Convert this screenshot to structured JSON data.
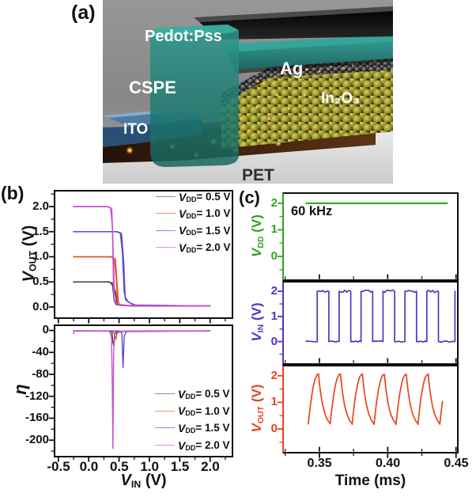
{
  "panel_a": {
    "tag": "(a)",
    "pedot": "Pedot:Pss",
    "cspe": "CSPE",
    "ag": "Ag",
    "in2o3": "In₂O₃",
    "ito": "ITO",
    "pet": "PET"
  },
  "panel_b": {
    "tag": "(b)",
    "ylabel_top": {
      "v": "V",
      "sub": "OUT",
      "unit": " (V)"
    },
    "ylabel_bottom": "η",
    "xlabel": {
      "v": "V",
      "sub": "IN",
      "unit": " (V)"
    }
  },
  "panel_c": {
    "tag": "(c)",
    "annotation": "60 kHz",
    "xlabel": "Time (ms)",
    "ylabel_vdd": {
      "v": "V",
      "sub": "DD",
      "unit": " (V)"
    },
    "ylabel_vin": {
      "v": "V",
      "sub": "IN",
      "unit": " (V)"
    },
    "ylabel_vout": {
      "v": "V",
      "sub": "OUT",
      "unit": " (V)"
    }
  },
  "chart_data": [
    {
      "id": "b-top",
      "type": "line",
      "xlabel": "V_IN (V)",
      "ylabel": "V_OUT (V)",
      "xlim": [
        -0.55,
        2.35
      ],
      "ylim": [
        -0.2,
        2.3
      ],
      "xticks": [
        -0.5,
        0,
        0.5,
        1,
        1.5,
        2
      ],
      "xticks_minor": [
        -0.25,
        0.25,
        0.75,
        1.25,
        1.75,
        2.25
      ],
      "yticks": [
        0,
        0.5,
        1,
        1.5,
        2
      ],
      "yticks_minor": [
        0.25,
        0.75,
        1.25,
        1.75,
        2.25
      ],
      "ytick_labels": [
        "0.0",
        "0.5",
        "1.0",
        "1.5",
        "2.0"
      ],
      "legend": true,
      "legend_position": "top-right",
      "series": [
        {
          "name": "V_DD = 0.5 V",
          "label": {
            "v": "V",
            "sub": "DD",
            "rest": "= 0.5 V"
          },
          "color": "#3b3b3b",
          "legend_color": "#8c8c8c",
          "width": 1.5,
          "vdd": 0.5,
          "branches": [
            [
              [
                -0.25,
                0.5
              ],
              [
                0.3,
                0.5
              ],
              [
                0.36,
                0.49
              ],
              [
                0.395,
                0.42
              ],
              [
                0.42,
                0.12
              ],
              [
                0.45,
                0.05
              ],
              [
                0.55,
                0.03
              ],
              [
                1.0,
                0.02
              ],
              [
                2.0,
                0.02
              ]
            ],
            [
              [
                -0.25,
                0.5
              ],
              [
                0.33,
                0.5
              ],
              [
                0.4,
                0.47
              ],
              [
                0.44,
                0.3
              ],
              [
                0.465,
                0.08
              ],
              [
                0.52,
                0.04
              ],
              [
                0.7,
                0.02
              ],
              [
                2.0,
                0.02
              ]
            ]
          ]
        },
        {
          "name": "V_DD = 1.0 V",
          "label": {
            "v": "V",
            "sub": "DD",
            "rest": "= 1.0 V"
          },
          "color": "#ee4d2a",
          "legend_color": "#f59070",
          "width": 1.5,
          "vdd": 1.0,
          "branches": [
            [
              [
                -0.25,
                1.0
              ],
              [
                0.36,
                1.0
              ],
              [
                0.42,
                0.97
              ],
              [
                0.455,
                0.55
              ],
              [
                0.475,
                0.1
              ],
              [
                0.52,
                0.04
              ],
              [
                0.8,
                0.02
              ],
              [
                2.0,
                0.02
              ]
            ],
            [
              [
                -0.25,
                1.0
              ],
              [
                0.38,
                1.0
              ],
              [
                0.44,
                0.95
              ],
              [
                0.47,
                0.4
              ],
              [
                0.49,
                0.07
              ],
              [
                0.55,
                0.03
              ],
              [
                2.0,
                0.02
              ]
            ]
          ]
        },
        {
          "name": "V_DD = 1.5 V",
          "label": {
            "v": "V",
            "sub": "DD",
            "rest": "= 1.5 V"
          },
          "color": "#5b49c4",
          "legend_color": "#9b88d6",
          "width": 1.5,
          "vdd": 1.5,
          "branches": [
            [
              [
                -0.25,
                1.5
              ],
              [
                0.45,
                1.5
              ],
              [
                0.52,
                1.48
              ],
              [
                0.555,
                1.1
              ],
              [
                0.585,
                0.3
              ],
              [
                0.61,
                0.14
              ],
              [
                0.68,
                0.08
              ],
              [
                0.78,
                0.03
              ],
              [
                2.0,
                0.02
              ]
            ],
            [
              [
                -0.25,
                1.5
              ],
              [
                0.47,
                1.5
              ],
              [
                0.54,
                1.46
              ],
              [
                0.575,
                0.9
              ],
              [
                0.6,
                0.2
              ],
              [
                0.65,
                0.1
              ],
              [
                0.75,
                0.04
              ],
              [
                2.0,
                0.02
              ]
            ]
          ]
        },
        {
          "name": "V_DD = 2.0 V",
          "label": {
            "v": "V",
            "sub": "DD",
            "rest": "= 2.0 V"
          },
          "color": "#c84fd0",
          "legend_color": "#d795de",
          "width": 1.5,
          "vdd": 2.0,
          "branches": [
            [
              [
                -0.25,
                2.0
              ],
              [
                0.3,
                2.0
              ],
              [
                0.36,
                1.98
              ],
              [
                0.39,
                1.6
              ],
              [
                0.41,
                0.3
              ],
              [
                0.43,
                0.1
              ],
              [
                0.5,
                0.05
              ],
              [
                0.65,
                0.03
              ],
              [
                2.0,
                0.02
              ]
            ],
            [
              [
                -0.25,
                2.0
              ],
              [
                0.32,
                2.0
              ],
              [
                0.38,
                1.95
              ],
              [
                0.405,
                1.0
              ],
              [
                0.425,
                0.15
              ],
              [
                0.46,
                0.06
              ],
              [
                0.6,
                0.03
              ],
              [
                2.0,
                0.02
              ]
            ]
          ]
        }
      ]
    },
    {
      "id": "b-bottom",
      "type": "line",
      "xlabel": "V_IN (V)",
      "ylabel": "η",
      "xlim": [
        -0.55,
        2.35
      ],
      "ylim": [
        -228,
        8
      ],
      "xticks": [
        -0.5,
        0,
        0.5,
        1,
        1.5,
        2
      ],
      "xticks_minor": [
        -0.25,
        0.25,
        0.75,
        1.25,
        1.75,
        2.25
      ],
      "xtick_labels": [
        "-0.5",
        "0.0",
        "0.5",
        "1.0",
        "1.5",
        "2.0"
      ],
      "yticks": [
        0,
        -40,
        -80,
        -120,
        -160,
        -200
      ],
      "yticks_minor": [
        -20,
        -60,
        -100,
        -140,
        -180,
        -220
      ],
      "ytick_labels": [
        "0",
        "-40",
        "-80",
        "-120",
        "-160",
        "-200"
      ],
      "legend": true,
      "legend_position": "bottom-right",
      "series": [
        {
          "name": "V_DD = 0.5 V",
          "label": {
            "v": "V",
            "sub": "DD",
            "rest": "= 0.5 V"
          },
          "color": "#3b3b3b",
          "legend_color": "#8c8c8c",
          "width": 1.4,
          "peak_gain": -28,
          "peak_gain_vin": 0.41,
          "branches": [
            [
              [
                -0.25,
                -0.8
              ],
              [
                0.34,
                -0.8
              ],
              [
                0.38,
                -3
              ],
              [
                0.4,
                -22
              ],
              [
                0.415,
                -28
              ],
              [
                0.43,
                -8
              ],
              [
                0.45,
                -3
              ],
              [
                0.55,
                -1.5
              ],
              [
                2.0,
                -0.8
              ]
            ]
          ]
        },
        {
          "name": "V_DD = 1.0 V",
          "label": {
            "v": "V",
            "sub": "DD",
            "rest": "= 1.0 V"
          },
          "color": "#ee4d2a",
          "legend_color": "#f59070",
          "width": 1.4,
          "peak_gain": -16,
          "peak_gain_vin": 0.45,
          "branches": [
            [
              [
                -0.25,
                -0.8
              ],
              [
                0.37,
                -1
              ],
              [
                0.42,
                -5
              ],
              [
                0.447,
                -16
              ],
              [
                0.47,
                -4
              ],
              [
                0.6,
                -1
              ],
              [
                2.0,
                -0.8
              ]
            ]
          ]
        },
        {
          "name": "V_DD = 1.5 V",
          "label": {
            "v": "V",
            "sub": "DD",
            "rest": "= 1.5 V"
          },
          "color": "#5b49c4",
          "legend_color": "#9b88d6",
          "width": 1.4,
          "peak_gain": -68,
          "peak_gain_vin": 0.57,
          "branches": [
            [
              [
                -0.25,
                -0.8
              ],
              [
                0.5,
                -1
              ],
              [
                0.545,
                -4
              ],
              [
                0.565,
                -68
              ],
              [
                0.585,
                -10
              ],
              [
                0.62,
                -2
              ],
              [
                2.0,
                -0.8
              ]
            ]
          ]
        },
        {
          "name": "V_DD = 2.0 V",
          "label": {
            "v": "V",
            "sub": "DD",
            "rest": "= 2.0 V"
          },
          "color": "#c84fd0",
          "legend_color": "#d795de",
          "width": 1.4,
          "peak_gain": -215,
          "peak_gain_vin": 0.4,
          "branches": [
            [
              [
                -0.25,
                -6
              ],
              [
                -0.245,
                -1
              ],
              [
                0.34,
                -1
              ],
              [
                0.375,
                -12
              ],
              [
                0.388,
                -95
              ],
              [
                0.398,
                -215
              ],
              [
                0.41,
                -40
              ],
              [
                0.425,
                -8
              ],
              [
                0.5,
                -1.5
              ],
              [
                2.0,
                -0.8
              ]
            ]
          ]
        }
      ]
    },
    {
      "id": "c-vdd",
      "type": "line",
      "ylabel": "V_DD (V)",
      "axis_color": "#2fa320",
      "xlim": [
        0.324,
        0.4505
      ],
      "ylim": [
        -0.85,
        2.35
      ],
      "xticks": [
        0.35,
        0.4,
        0.45
      ],
      "xticks_minor": [
        0.325,
        0.375,
        0.425
      ],
      "yticks": [
        0,
        1,
        2
      ],
      "yticks_minor": [
        -0.5,
        0.5,
        1.5
      ],
      "ytick_labels": [
        "0",
        "1",
        "2"
      ],
      "annotation": "60 kHz",
      "series": [
        {
          "name": "V_DD",
          "color": "#2fa320",
          "width": 2.2,
          "points": [
            [
              0.3405,
              2
            ],
            [
              0.4435,
              2
            ]
          ]
        }
      ]
    },
    {
      "id": "c-vin",
      "type": "line",
      "ylabel": "V_IN (V)",
      "axis_color": "#5633c0",
      "xlim": [
        0.324,
        0.4505
      ],
      "ylim": [
        -0.85,
        2.35
      ],
      "xticks": [
        0.35,
        0.4,
        0.45
      ],
      "xticks_minor": [
        0.325,
        0.375,
        0.425
      ],
      "yticks": [
        0,
        1,
        2
      ],
      "yticks_minor": [
        -0.5,
        0.5,
        1.5
      ],
      "ytick_labels": [
        "0",
        "1",
        "2"
      ],
      "series": [
        {
          "name": "V_IN square wave",
          "color": "#5633c0",
          "width": 1.7,
          "gen": {
            "kind": "square",
            "t_start": 0.3405,
            "rise_start": 0.3484,
            "period": 0.01605,
            "high_width": 0.0085,
            "pulses": 6,
            "low": 0,
            "high": 2,
            "final_rise": 0.4492,
            "noise": 0.05
          }
        }
      ]
    },
    {
      "id": "c-vout",
      "type": "line",
      "ylabel": "V_OUT (V)",
      "xlabel": "Time (ms)",
      "axis_color": "#e8431f",
      "xlim": [
        0.324,
        0.4505
      ],
      "ylim": [
        -0.85,
        2.35
      ],
      "xticks": [
        0.35,
        0.4,
        0.45
      ],
      "xticks_minor": [
        0.325,
        0.375,
        0.425
      ],
      "xtick_labels": [
        "0.35",
        "0.40",
        "0.45"
      ],
      "yticks": [
        0,
        1,
        2
      ],
      "yticks_minor": [
        -0.5,
        0.5,
        1.5
      ],
      "ytick_labels": [
        "0",
        "1",
        "2"
      ],
      "series": [
        {
          "name": "V_OUT response",
          "color": "#e8431f",
          "width": 1.7,
          "gen": {
            "kind": "rc",
            "first_peak": 0.3494,
            "period": 0.01605,
            "peaks": 6,
            "rise_width": 0.0075,
            "peak": 2.06,
            "trough": 0.18,
            "t_start": 0.3415,
            "t_end": 0.4405
          }
        }
      ]
    }
  ]
}
